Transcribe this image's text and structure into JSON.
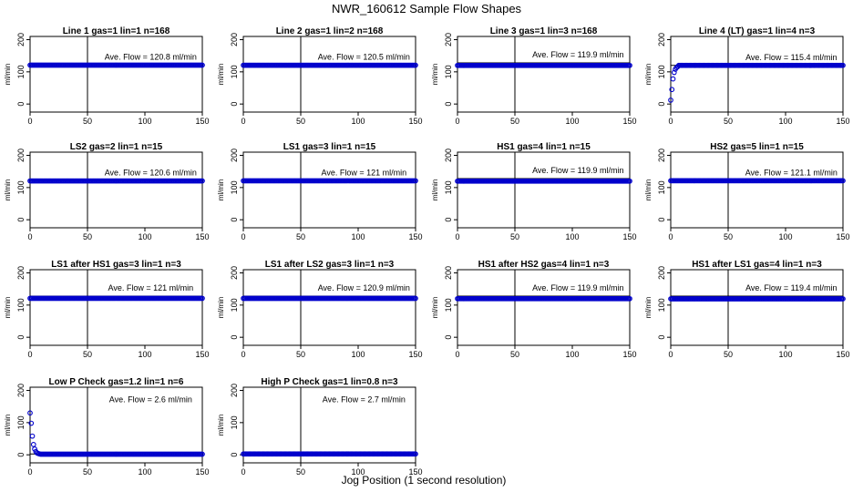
{
  "title": "NWR_160612  Sample Flow Shapes",
  "xlabel": "Jog Position (1 second resolution)",
  "colors": {
    "point": "#0000cc",
    "axis": "#000000"
  },
  "chart_data": [
    {
      "type": "scatter",
      "title": "Line 1 gas=1 lin=1 n=168",
      "ylabel": "ml/min",
      "avg_text": "Ave. Flow =  120.8  ml/min",
      "xlim": [
        0,
        150
      ],
      "ylim": [
        -25,
        210
      ],
      "xticks": [
        0,
        50,
        100,
        150
      ],
      "yticks": [
        0,
        100,
        200
      ],
      "ref_hline": 120.8,
      "ref_vline": 50,
      "shape": "flat",
      "level": 120.8
    },
    {
      "type": "scatter",
      "title": "Line 2 gas=1 lin=2 n=168",
      "ylabel": "ml/min",
      "avg_text": "Ave. Flow =  120.5  ml/min",
      "xlim": [
        0,
        150
      ],
      "ylim": [
        -25,
        210
      ],
      "xticks": [
        0,
        50,
        100,
        150
      ],
      "yticks": [
        0,
        100,
        200
      ],
      "ref_hline": 120.5,
      "ref_vline": 50,
      "shape": "flat",
      "level": 120.5
    },
    {
      "type": "scatter",
      "title": "Line 3 gas=1 lin=3 n=168",
      "ylabel": "ml/min",
      "avg_text": "Ave. Flow =  119.9  ml/min",
      "xlim": [
        0,
        150
      ],
      "ylim": [
        -25,
        210
      ],
      "xticks": [
        0,
        50,
        100,
        150
      ],
      "yticks": [
        0,
        100,
        200
      ],
      "ref_hline": 128,
      "ref_vline": 50,
      "shape": "flat",
      "level": 119.9
    },
    {
      "type": "scatter",
      "title": "Line 4 (LT) gas=1 lin=4 n=3",
      "ylabel": "ml/min",
      "avg_text": "Ave. Flow =  115.4  ml/min",
      "xlim": [
        0,
        150
      ],
      "ylim": [
        -25,
        210
      ],
      "xticks": [
        0,
        50,
        100,
        150
      ],
      "yticks": [
        0,
        100,
        200
      ],
      "ref_hline": 120,
      "ref_vline": 50,
      "shape": "rise",
      "level": 115.4
    },
    {
      "type": "scatter",
      "title": "LS2 gas=2 lin=1 n=15",
      "ylabel": "ml/min",
      "avg_text": "Ave. Flow =  120.6  ml/min",
      "xlim": [
        0,
        150
      ],
      "ylim": [
        -25,
        210
      ],
      "xticks": [
        0,
        50,
        100,
        150
      ],
      "yticks": [
        0,
        100,
        200
      ],
      "ref_hline": 120.6,
      "ref_vline": 50,
      "shape": "flat",
      "level": 120.6
    },
    {
      "type": "scatter",
      "title": "LS1 gas=3 lin=1 n=15",
      "ylabel": "ml/min",
      "avg_text": "Ave. Flow =  121  ml/min",
      "xlim": [
        0,
        150
      ],
      "ylim": [
        -25,
        210
      ],
      "xticks": [
        0,
        50,
        100,
        150
      ],
      "yticks": [
        0,
        100,
        200
      ],
      "ref_hline": 121,
      "ref_vline": 50,
      "shape": "flat",
      "level": 121
    },
    {
      "type": "scatter",
      "title": "HS1 gas=4 lin=1 n=15",
      "ylabel": "ml/min",
      "avg_text": "Ave. Flow =  119.9  ml/min",
      "xlim": [
        0,
        150
      ],
      "ylim": [
        -25,
        210
      ],
      "xticks": [
        0,
        50,
        100,
        150
      ],
      "yticks": [
        0,
        100,
        200
      ],
      "ref_hline": 128,
      "ref_vline": 50,
      "shape": "flat",
      "level": 119.9
    },
    {
      "type": "scatter",
      "title": "HS2 gas=5 lin=1 n=15",
      "ylabel": "ml/min",
      "avg_text": "Ave. Flow =  121.1  ml/min",
      "xlim": [
        0,
        150
      ],
      "ylim": [
        -25,
        210
      ],
      "xticks": [
        0,
        50,
        100,
        150
      ],
      "yticks": [
        0,
        100,
        200
      ],
      "ref_hline": 121.1,
      "ref_vline": 50,
      "shape": "flat",
      "level": 121.1
    },
    {
      "type": "scatter",
      "title": "LS1 after HS1 gas=3 lin=1 n=3",
      "ylabel": "ml/min",
      "avg_text": "Ave. Flow =  121  ml/min",
      "xlim": [
        0,
        150
      ],
      "ylim": [
        -25,
        210
      ],
      "xticks": [
        0,
        50,
        100,
        150
      ],
      "yticks": [
        0,
        100,
        200
      ],
      "ref_hline": 128,
      "ref_vline": 50,
      "shape": "flat",
      "level": 121
    },
    {
      "type": "scatter",
      "title": "LS1 after LS2 gas=3 lin=1 n=3",
      "ylabel": "ml/min",
      "avg_text": "Ave. Flow =  120.9  ml/min",
      "xlim": [
        0,
        150
      ],
      "ylim": [
        -25,
        210
      ],
      "xticks": [
        0,
        50,
        100,
        150
      ],
      "yticks": [
        0,
        100,
        200
      ],
      "ref_hline": 128,
      "ref_vline": 50,
      "shape": "flat",
      "level": 120.9
    },
    {
      "type": "scatter",
      "title": "HS1 after HS2 gas=4 lin=1 n=3",
      "ylabel": "ml/min",
      "avg_text": "Ave. Flow =  119.9  ml/min",
      "xlim": [
        0,
        150
      ],
      "ylim": [
        -25,
        210
      ],
      "xticks": [
        0,
        50,
        100,
        150
      ],
      "yticks": [
        0,
        100,
        200
      ],
      "ref_hline": 128,
      "ref_vline": 50,
      "shape": "flat",
      "level": 119.9
    },
    {
      "type": "scatter",
      "title": "HS1 after LS1 gas=4 lin=1 n=3",
      "ylabel": "ml/min",
      "avg_text": "Ave. Flow =  119.4  ml/min",
      "xlim": [
        0,
        150
      ],
      "ylim": [
        -25,
        210
      ],
      "xticks": [
        0,
        50,
        100,
        150
      ],
      "yticks": [
        0,
        100,
        200
      ],
      "ref_hline": 128,
      "ref_vline": 50,
      "shape": "flat",
      "level": 119.4
    },
    {
      "type": "scatter",
      "title": "Low P Check gas=1.2 lin=1 n=6",
      "ylabel": "ml/min",
      "avg_text": "Ave. Flow =  2.6  ml/min",
      "xlim": [
        0,
        150
      ],
      "ylim": [
        -25,
        210
      ],
      "xticks": [
        0,
        50,
        100,
        150
      ],
      "yticks": [
        0,
        100,
        200
      ],
      "ref_hline": 2.6,
      "ref_vline": 50,
      "shape": "decay",
      "level": 2.6
    },
    {
      "type": "scatter",
      "title": "High P Check gas=1 lin=0.8 n=3",
      "ylabel": "ml/min",
      "avg_text": "Ave. Flow =  2.7  ml/min",
      "xlim": [
        0,
        150
      ],
      "ylim": [
        -25,
        210
      ],
      "xticks": [
        0,
        50,
        100,
        150
      ],
      "yticks": [
        0,
        100,
        200
      ],
      "ref_hline": 2.7,
      "ref_vline": 50,
      "shape": "flat",
      "level": 2.7
    }
  ]
}
